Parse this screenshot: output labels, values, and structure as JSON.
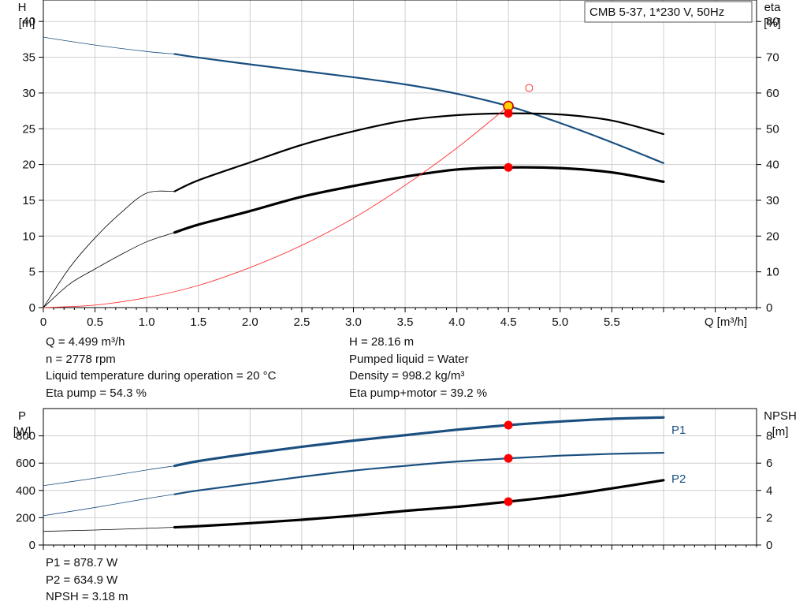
{
  "chart_data": [
    {
      "type": "line",
      "title": "CMB 5-37, 1*230 V, 50Hz",
      "xlabel": "Q [m³/h]",
      "ylabel_left": [
        "H",
        "[m]"
      ],
      "ylabel_right": [
        "eta",
        "[%]"
      ],
      "x_ticks": [
        "0",
        "0.5",
        "1.0",
        "1.5",
        "2.0",
        "2.5",
        "3.0",
        "3.5",
        "4.0",
        "4.5",
        "5.0",
        "5.5"
      ],
      "y_left_ticks": [
        "0",
        "5",
        "10",
        "15",
        "20",
        "25",
        "30",
        "35",
        "40"
      ],
      "y_right_ticks": [
        "0",
        "10",
        "20",
        "30",
        "40",
        "50",
        "60",
        "70",
        "80"
      ],
      "xlim": [
        0,
        6.9
      ],
      "ylim_left": [
        0,
        43
      ],
      "ylim_right": [
        0,
        86
      ],
      "grid": true,
      "series": [
        {
          "axis": "left",
          "color": "#1a4f80",
          "x": [
            0,
            0.5,
            1.0,
            1.27,
            1.5,
            2.0,
            2.5,
            3.0,
            3.5,
            4.0,
            4.5,
            5.0,
            5.5,
            6.0
          ],
          "y": [
            37.8,
            36.7,
            35.8,
            35.45,
            34.95,
            34.0,
            33.1,
            32.2,
            31.2,
            29.9,
            28.16,
            25.8,
            23.1,
            20.2
          ],
          "thin_until": 1.27
        },
        {
          "axis": "right",
          "color": "#000000",
          "x": [
            0,
            0.25,
            0.5,
            0.75,
            1.0,
            1.27,
            1.5,
            2.0,
            2.5,
            3.0,
            3.5,
            4.0,
            4.5,
            5.0,
            5.5,
            6.0
          ],
          "y": [
            0,
            11.0,
            19.5,
            26.5,
            32.0,
            32.5,
            35.6,
            40.6,
            45.5,
            49.3,
            52.3,
            53.8,
            54.3,
            54.0,
            52.3,
            48.5
          ],
          "thin_until": 1.27
        },
        {
          "axis": "right",
          "color": "#000000",
          "x": [
            0,
            0.25,
            0.5,
            0.75,
            1.0,
            1.27,
            1.5,
            2.0,
            2.5,
            3.0,
            3.5,
            4.0,
            4.5,
            5.0,
            5.5,
            6.0
          ],
          "y": [
            0,
            6.5,
            10.8,
            14.8,
            18.4,
            21.0,
            23.2,
            27.0,
            31.0,
            34.0,
            36.6,
            38.6,
            39.2,
            39.0,
            37.8,
            35.2
          ],
          "thin_until": 1.27,
          "thick": true
        },
        {
          "axis": "left",
          "color": "#ff3030",
          "x": [
            0,
            0.5,
            1.0,
            1.5,
            2.0,
            2.5,
            3.0,
            3.5,
            4.0,
            4.5
          ],
          "y": [
            0,
            0.35,
            1.4,
            3.1,
            5.6,
            8.7,
            12.5,
            17.1,
            22.3,
            28.16
          ],
          "thin": true
        }
      ],
      "points": [
        {
          "x": 4.499,
          "y": 28.16,
          "axis": "left",
          "style": "duty",
          "color": "#ffd400"
        },
        {
          "x": 4.499,
          "y": 54.3,
          "axis": "right",
          "style": "dot",
          "color": "#ff0000"
        },
        {
          "x": 4.499,
          "y": 39.2,
          "axis": "right",
          "style": "dot",
          "color": "#ff0000"
        },
        {
          "x": 4.7,
          "y": 30.7,
          "axis": "left",
          "style": "ring",
          "color": "#ff3030"
        }
      ]
    },
    {
      "type": "line",
      "xlabel": "",
      "ylabel_left": [
        "P",
        "[W]"
      ],
      "ylabel_right": [
        "NPSH",
        "[m]"
      ],
      "y_left_ticks": [
        "0",
        "200",
        "400",
        "600",
        "800"
      ],
      "y_right_ticks": [
        "0",
        "2",
        "4",
        "6",
        "8"
      ],
      "xlim": [
        0,
        6.9
      ],
      "ylim_left": [
        0,
        1000
      ],
      "ylim_right": [
        0,
        10
      ],
      "grid": true,
      "series": [
        {
          "name": "P1",
          "axis": "left",
          "color": "#1a4f80",
          "x": [
            0,
            0.5,
            1.0,
            1.27,
            1.5,
            2.0,
            2.5,
            3.0,
            3.5,
            4.0,
            4.5,
            5.0,
            5.5,
            6.0
          ],
          "y": [
            435,
            490,
            550,
            580,
            615,
            670,
            720,
            765,
            805,
            845,
            878.7,
            905,
            925,
            935
          ],
          "thin_until": 1.27,
          "thick": true
        },
        {
          "name": "P2",
          "axis": "left",
          "color": "#1a4f80",
          "x": [
            0,
            0.5,
            1.0,
            1.27,
            1.5,
            2.0,
            2.5,
            3.0,
            3.5,
            4.0,
            4.5,
            5.0,
            5.5,
            6.0
          ],
          "y": [
            215,
            275,
            340,
            372,
            400,
            450,
            500,
            545,
            580,
            612,
            634.9,
            655,
            668,
            676
          ],
          "thin_until": 1.27
        },
        {
          "axis": "right",
          "color": "#000000",
          "x": [
            0,
            0.5,
            1.0,
            1.27,
            1.5,
            2.0,
            2.5,
            3.0,
            3.5,
            4.0,
            4.5,
            5.0,
            5.5,
            6.0
          ],
          "y": [
            1.0,
            1.1,
            1.22,
            1.3,
            1.38,
            1.6,
            1.85,
            2.15,
            2.5,
            2.8,
            3.18,
            3.6,
            4.15,
            4.75
          ],
          "thin_until": 1.27,
          "thick": true
        }
      ],
      "points": [
        {
          "x": 4.499,
          "y": 878.7,
          "axis": "left",
          "style": "dot",
          "color": "#ff0000"
        },
        {
          "x": 4.499,
          "y": 634.9,
          "axis": "left",
          "style": "dot",
          "color": "#ff0000"
        },
        {
          "x": 4.499,
          "y": 3.18,
          "axis": "right",
          "style": "dot",
          "color": "#ff0000"
        }
      ]
    }
  ],
  "info_top_left": [
    "Q = 4.499 m³/h",
    "n = 2778 rpm",
    "Liquid temperature during operation = 20 °C",
    "Eta pump = 54.3 %"
  ],
  "info_top_right": [
    "H = 28.16 m",
    "Pumped liquid = Water",
    "Density = 998.2 kg/m³",
    "Eta pump+motor = 39.2 %"
  ],
  "info_bottom": [
    "P1 = 878.7 W",
    "P2 = 634.9 W",
    "NPSH = 3.18 m"
  ]
}
